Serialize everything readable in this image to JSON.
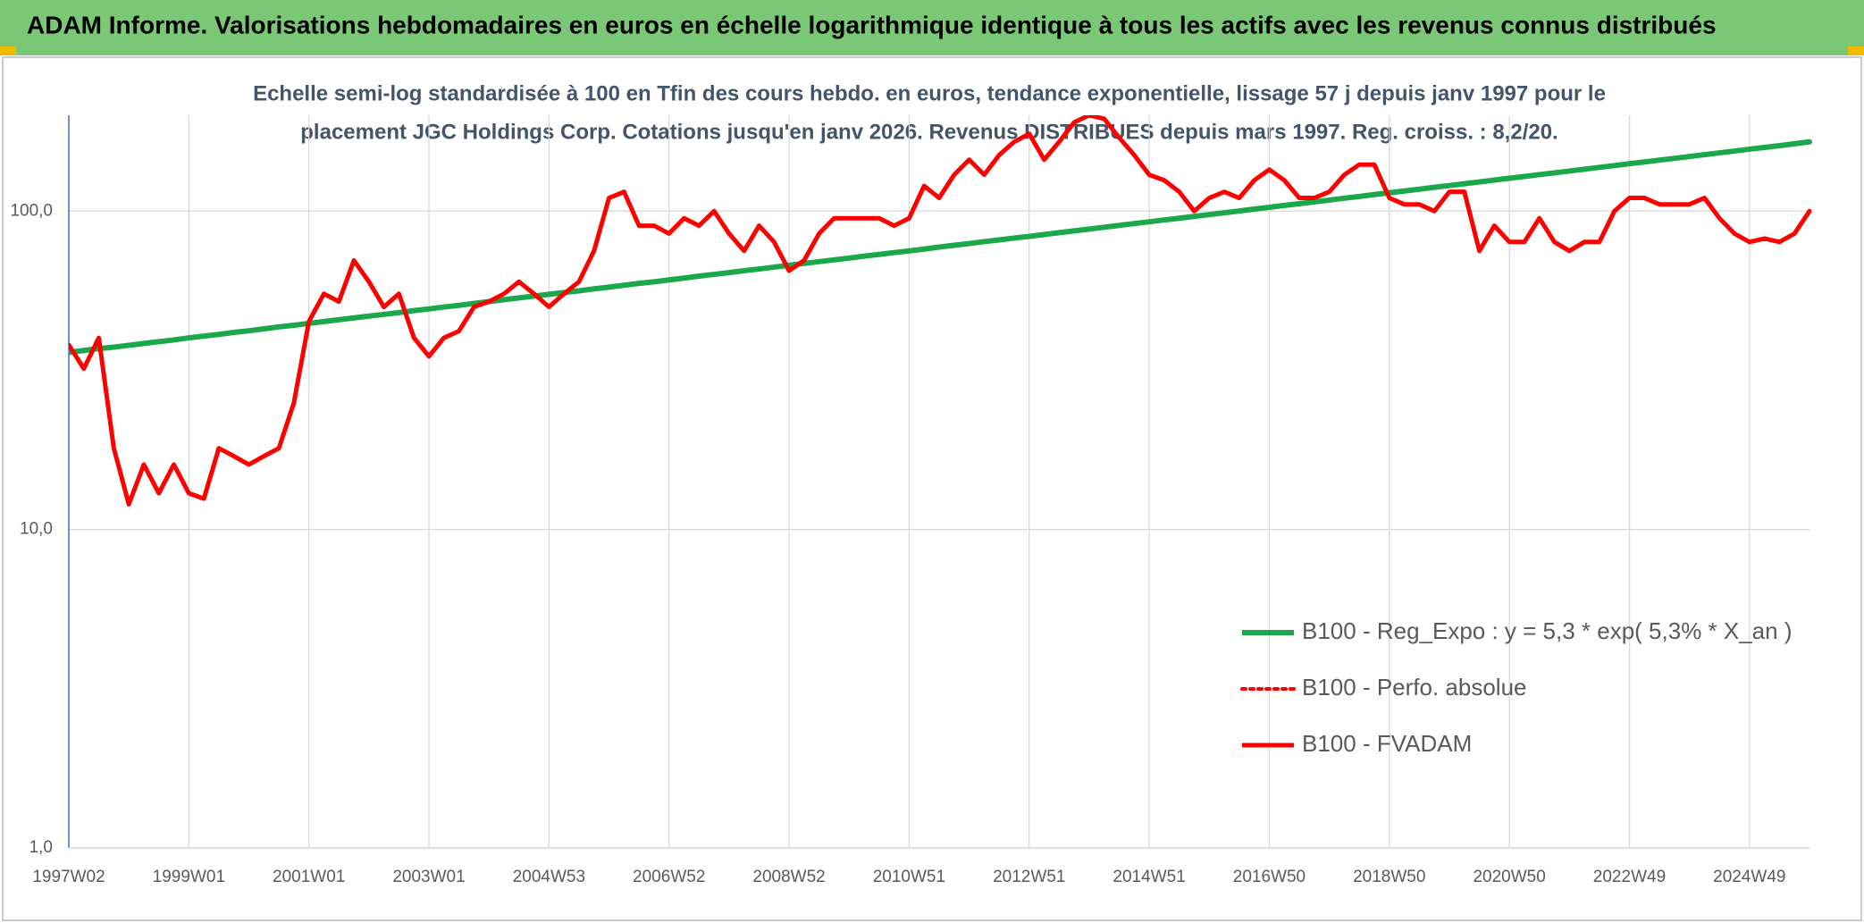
{
  "chart_data": {
    "type": "line",
    "title": "ADAM Informe. Valorisations hebdomadaires en euros en échelle logarithmique identique à tous les actifs avec les revenus connus distribués",
    "subtitle": [
      "Echelle semi-log standardisée à 100 en Tfin des cours hebdo. en euros, tendance exponentielle, lissage 57 j depuis janv 1997 pour le",
      "placement JGC Holdings Corp. Cotations jusqu'en janv 2026. Revenus DISTRIBUES depuis mars 1997. Reg. croiss. : 8,2/20."
    ],
    "log_scale": true,
    "grid": true,
    "legend": "right",
    "ylim": [
      1,
      200
    ],
    "yticks": [
      {
        "value": 1,
        "label": "1,0"
      },
      {
        "value": 10,
        "label": "10,0"
      },
      {
        "value": 100,
        "label": "100,0"
      }
    ],
    "categories": [
      "1997W02",
      null,
      null,
      null,
      null,
      null,
      null,
      null,
      "1999W01",
      null,
      null,
      null,
      null,
      null,
      null,
      null,
      "2001W01",
      null,
      null,
      null,
      null,
      null,
      null,
      null,
      "2003W01",
      null,
      null,
      null,
      null,
      null,
      null,
      null,
      "2004W53",
      null,
      null,
      null,
      null,
      null,
      null,
      null,
      "2006W52",
      null,
      null,
      null,
      null,
      null,
      null,
      null,
      "2008W52",
      null,
      null,
      null,
      null,
      null,
      null,
      null,
      "2010W51",
      null,
      null,
      null,
      null,
      null,
      null,
      null,
      "2012W51",
      null,
      null,
      null,
      null,
      null,
      null,
      null,
      "2014W51",
      null,
      null,
      null,
      null,
      null,
      null,
      null,
      "2016W50",
      null,
      null,
      null,
      null,
      null,
      null,
      null,
      "2018W50",
      null,
      null,
      null,
      null,
      null,
      null,
      null,
      "2020W50",
      null,
      null,
      null,
      null,
      null,
      null,
      null,
      "2022W49",
      null,
      null,
      null,
      null,
      null,
      null,
      null,
      "2024W49",
      null,
      null,
      null,
      null
    ],
    "series": [
      {
        "name": "B100 - Reg_Expo : y = 5,3 * exp( 5,3% *  X_an )",
        "color": "#1aa84a",
        "width": 6,
        "values": [
          36.0,
          36.5,
          37.0,
          37.4,
          37.9,
          38.4,
          38.9,
          39.4,
          40.0,
          40.5,
          41.0,
          41.6,
          42.1,
          42.7,
          43.3,
          43.8,
          44.4,
          45.0,
          45.6,
          46.2,
          46.8,
          47.4,
          48.0,
          48.7,
          49.3,
          50.0,
          50.6,
          51.3,
          52.0,
          52.7,
          53.4,
          54.1,
          54.8,
          55.5,
          56.2,
          57.0,
          57.7,
          58.5,
          59.3,
          60.0,
          60.8,
          61.6,
          62.5,
          63.3,
          64.1,
          65.0,
          65.8,
          66.7,
          67.6,
          68.5,
          69.4,
          70.3,
          71.2,
          72.2,
          73.1,
          74.1,
          75.0,
          76.0,
          77.1,
          78.1,
          79.1,
          80.2,
          81.2,
          82.3,
          83.3,
          84.4,
          85.6,
          86.7,
          87.8,
          89.0,
          90.2,
          91.4,
          92.6,
          93.8,
          95.0,
          96.3,
          97.5,
          98.8,
          100.1,
          101.5,
          102.8,
          104.2,
          105.5,
          106.9,
          108.3,
          109.8,
          111.2,
          112.7,
          114.2,
          115.7,
          117.2,
          118.8,
          120.3,
          121.9,
          123.5,
          125.2,
          126.8,
          128.5,
          130.2,
          131.9,
          133.6,
          135.4,
          137.2,
          139.0,
          140.9,
          142.7,
          144.6,
          146.5,
          148.4,
          150.4,
          152.4,
          154.4,
          156.5,
          158.5,
          160.6,
          162.8,
          165.0
        ]
      },
      {
        "name": "B100 - Perfo. absolue",
        "color": "#ff0000",
        "dash": "dotted",
        "width": 4
      },
      {
        "name": "B100 - FVADAM",
        "color": "#ff0000",
        "width": 5,
        "values": [
          38,
          32,
          40,
          18,
          12,
          16,
          13,
          16,
          13,
          12.5,
          18,
          17,
          16,
          17,
          18,
          25,
          45,
          55,
          52,
          70,
          60,
          50,
          55,
          40,
          35,
          40,
          42,
          50,
          52,
          55,
          60,
          55,
          50,
          55,
          60,
          75,
          110,
          115,
          90,
          90,
          85,
          95,
          90,
          100,
          85,
          75,
          90,
          80,
          65,
          70,
          85,
          95,
          95,
          95,
          95,
          90,
          95,
          120,
          110,
          130,
          145,
          130,
          150,
          165,
          175,
          145,
          165,
          190,
          200,
          195,
          170,
          150,
          130,
          125,
          115,
          100,
          110,
          115,
          110,
          125,
          135,
          125,
          110,
          110,
          115,
          130,
          140,
          140,
          110,
          105,
          105,
          100,
          115,
          115,
          75,
          90,
          80,
          80,
          95,
          80,
          75,
          80,
          80,
          100,
          110,
          110,
          105,
          105,
          105,
          110,
          95,
          85,
          80,
          82,
          80,
          85,
          100
        ]
      }
    ]
  }
}
